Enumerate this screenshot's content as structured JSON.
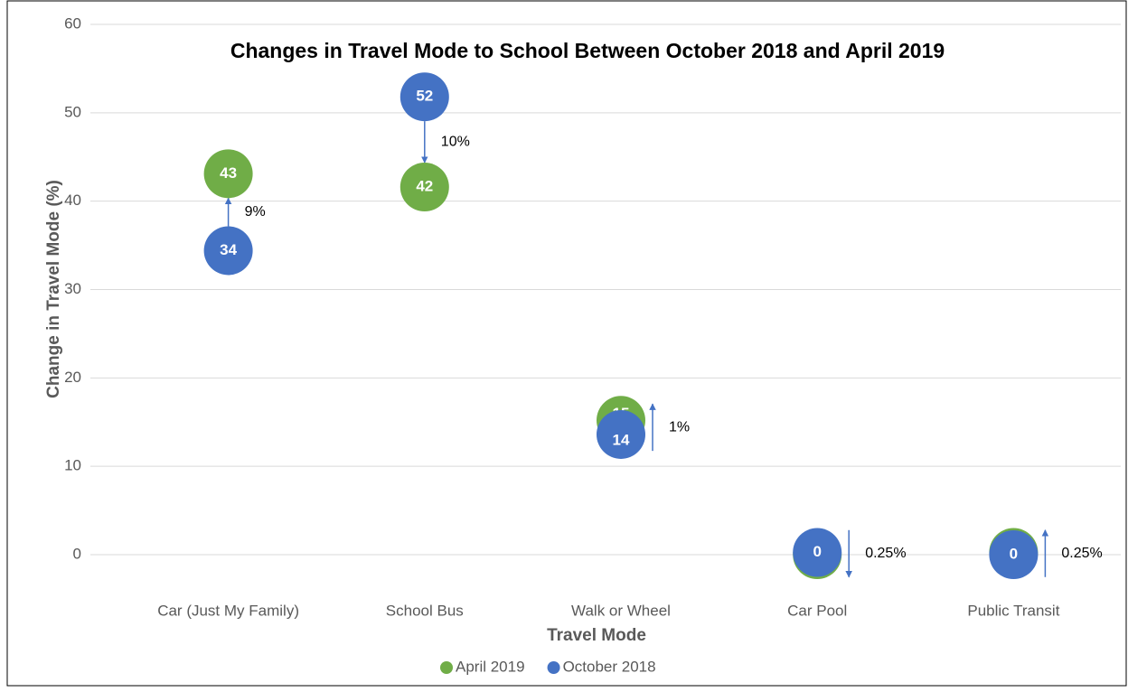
{
  "chart_data": {
    "type": "dot",
    "title": "Changes in Travel Mode to School Between October 2018 and April 2019",
    "x_label": "Travel Mode",
    "y_label": "Change in Travel Mode (%)",
    "categories": [
      "Car (Just My Family)",
      "School Bus",
      "Walk or Wheel",
      "Car Pool",
      "Public Transit"
    ],
    "series": [
      {
        "name": "April 2019",
        "color": "#70ad47",
        "values": [
          43.1,
          41.6,
          15.2,
          0,
          0.25
        ],
        "value_labels": [
          "43",
          "42",
          "15",
          "0",
          "0"
        ]
      },
      {
        "name": "October 2018",
        "color": "#4472c4",
        "values": [
          34.4,
          51.8,
          13.6,
          0.25,
          0
        ],
        "value_labels": [
          "34",
          "52",
          "14",
          "0",
          "0"
        ]
      }
    ],
    "annotations": [
      "9%",
      "10%",
      "1%",
      "0.25%",
      "0.25%"
    ],
    "ylim": [
      -6,
      62
    ],
    "yticks": [
      0,
      10,
      20,
      30,
      40,
      50,
      60
    ],
    "grid": true,
    "legend": "bottom"
  }
}
